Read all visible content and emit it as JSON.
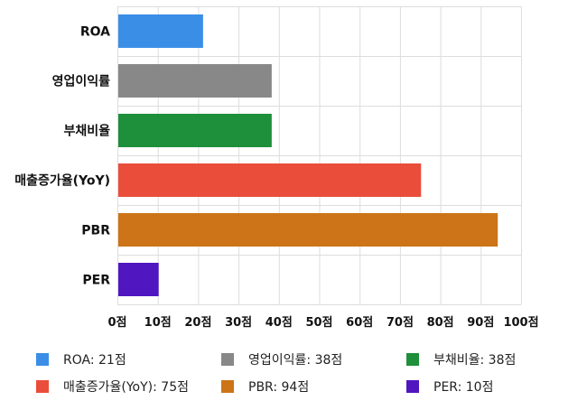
{
  "chart_data": {
    "type": "bar",
    "orientation": "horizontal",
    "categories": [
      "ROA",
      "영업이익률",
      "부채비율",
      "매출증가율(YoY)",
      "PBR",
      "PER"
    ],
    "values": [
      21,
      38,
      38,
      75,
      94,
      10
    ],
    "colors": [
      "#3a8ee6",
      "#888888",
      "#1e8f3a",
      "#ea4d3a",
      "#cc7417",
      "#5016bf"
    ],
    "xlim": [
      0,
      100
    ],
    "xticks": [
      0,
      10,
      20,
      30,
      40,
      50,
      60,
      70,
      80,
      90,
      100
    ],
    "tick_suffix": "점",
    "grid": true,
    "legend": {
      "placement": "bottom",
      "items": [
        {
          "label": "ROA: 21점",
          "color": "#3a8ee6"
        },
        {
          "label": "영업이익률: 38점",
          "color": "#888888"
        },
        {
          "label": "부채비율: 38점",
          "color": "#1e8f3a"
        },
        {
          "label": "매출증가율(YoY): 75점",
          "color": "#ea4d3a"
        },
        {
          "label": "PBR: 94점",
          "color": "#cc7417"
        },
        {
          "label": "PER: 10점",
          "color": "#5016bf"
        }
      ]
    }
  }
}
